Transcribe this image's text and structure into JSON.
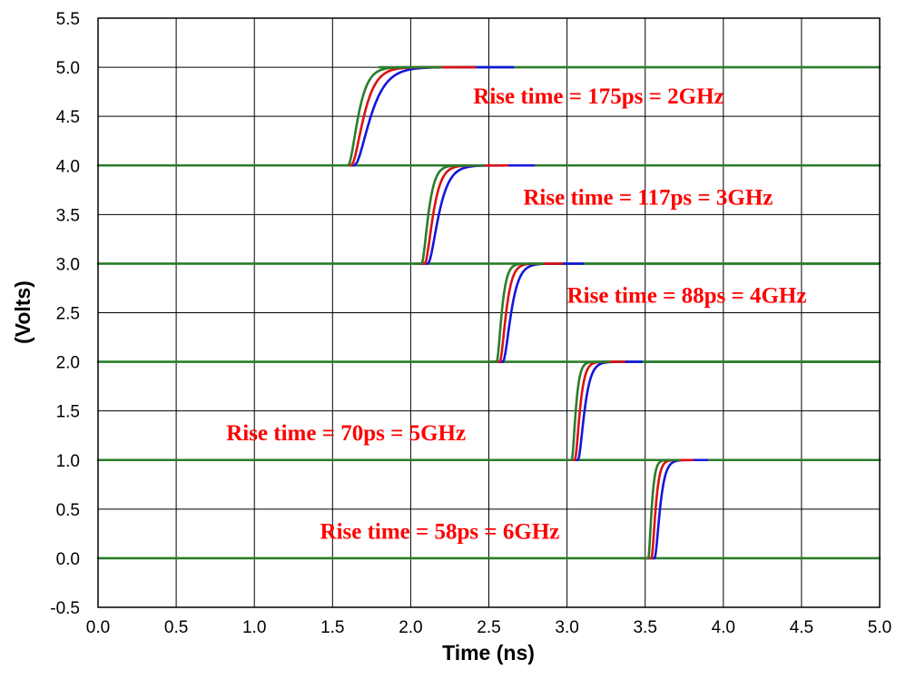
{
  "chart_data": {
    "type": "line",
    "xlabel": "Time (ns)",
    "ylabel": "(Volts)",
    "xlim": [
      0,
      5
    ],
    "ylim": [
      -0.5,
      5.5
    ],
    "x_ticks": [
      "0.0",
      "0.5",
      "1.0",
      "1.5",
      "2.0",
      "2.5",
      "3.0",
      "3.5",
      "4.0",
      "4.5",
      "5.0"
    ],
    "y_ticks": [
      "5.5",
      "5.0",
      "4.5",
      "4.0",
      "3.5",
      "3.0",
      "2.5",
      "2.0",
      "1.5",
      "1.0",
      "0.5",
      "0.0",
      "-0.5"
    ],
    "grid": true,
    "trace_colors": {
      "fast": "#2a7d2a",
      "mid": "#dd1111",
      "slow": "#1515dd"
    },
    "annotation_color": "#ff0000",
    "steps": [
      {
        "base": 4,
        "step_start": 1.6,
        "rise_time_ps": 175,
        "annotation": "Rise time = 175ps = 2GHz",
        "anchor_x": 2.4,
        "anchor_y": 4.63
      },
      {
        "base": 3,
        "step_start": 2.07,
        "rise_time_ps": 117,
        "annotation": "Rise time = 117ps = 3GHz",
        "anchor_x": 2.72,
        "anchor_y": 3.6
      },
      {
        "base": 2,
        "step_start": 2.55,
        "rise_time_ps": 88,
        "annotation": "Rise time = 88ps = 4GHz",
        "anchor_x": 3.0,
        "anchor_y": 2.6
      },
      {
        "base": 1,
        "step_start": 3.03,
        "rise_time_ps": 70,
        "annotation": "Rise time = 70ps = 5GHz",
        "anchor_x": 0.82,
        "anchor_y": 1.2
      },
      {
        "base": 0,
        "step_start": 3.52,
        "rise_time_ps": 58,
        "annotation": "Rise time = 58ps = 6GHz",
        "anchor_x": 1.42,
        "anchor_y": 0.2
      }
    ]
  }
}
